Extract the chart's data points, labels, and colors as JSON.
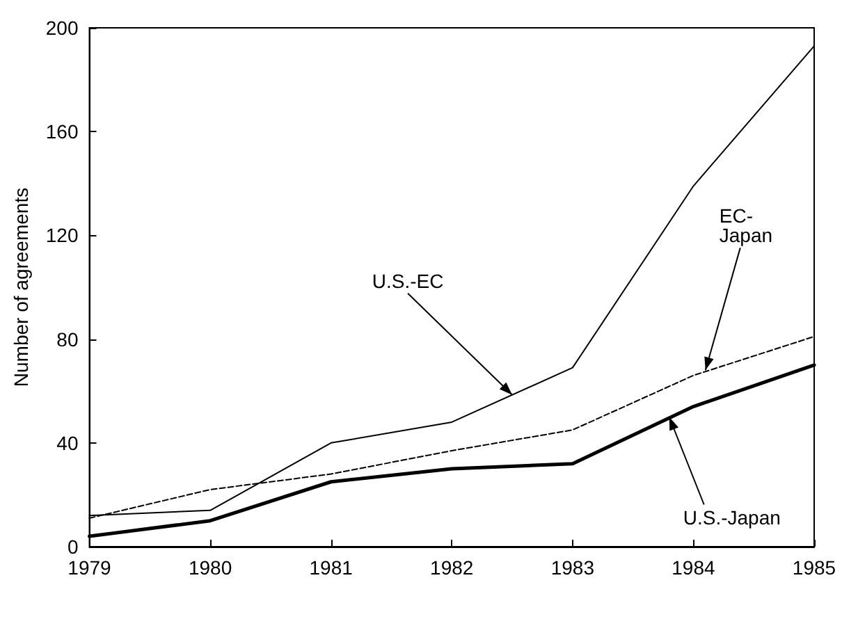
{
  "chart_data": {
    "type": "line",
    "ylabel": "Number of agreements",
    "x": [
      1979,
      1980,
      1981,
      1982,
      1983,
      1984,
      1985
    ],
    "xlim": [
      1979,
      1985
    ],
    "xticks": [
      1979,
      1980,
      1981,
      1982,
      1983,
      1984,
      1985
    ],
    "ylim": [
      0,
      200
    ],
    "yticks": [
      0,
      40,
      80,
      120,
      160,
      200
    ],
    "series": [
      {
        "color": "#000000",
        "line_style": "solid",
        "values": [
          12,
          14,
          40,
          48,
          69,
          139,
          193
        ]
      },
      {
        "color": "#000000",
        "line_style": "dashed",
        "values": [
          11,
          22,
          28,
          37,
          45,
          66,
          81
        ]
      },
      {
        "color": "#000000",
        "line_style": "solid",
        "values": [
          4,
          10,
          25,
          30,
          32,
          54,
          70
        ]
      }
    ],
    "annotations": [
      {
        "text": "U.S.-EC",
        "x": 1982.5,
        "y": 58.5
      },
      {
        "text": "EC-\nJapan",
        "x": 1984.1,
        "y": 68
      },
      {
        "text": "U.S.-Japan",
        "x": 1983.8,
        "y": 50
      }
    ],
    "grid": false,
    "marker": "none"
  }
}
